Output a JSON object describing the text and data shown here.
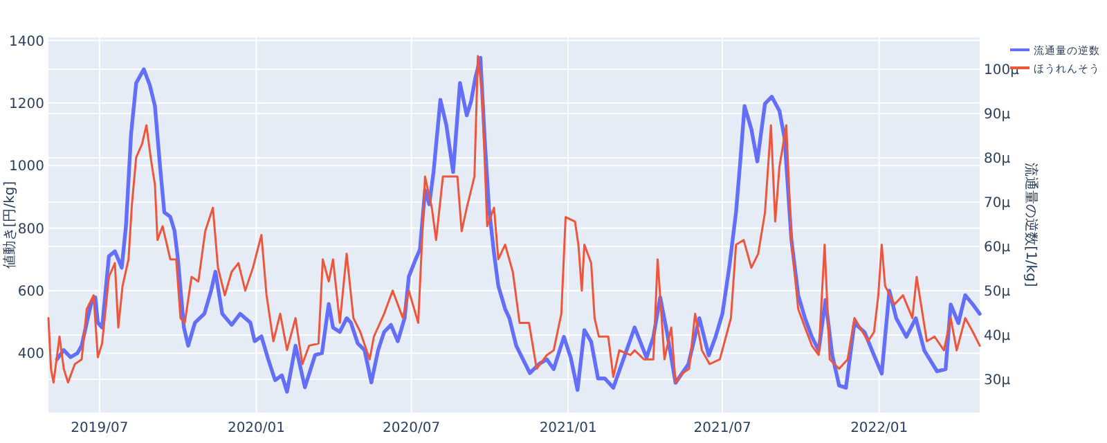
{
  "chart_data": {
    "type": "line",
    "ylabel": "値動き[円/kg]",
    "y2label": "流通量の逆数[1/kg]",
    "xlim": [
      "2019-05-02",
      "2022-04-29"
    ],
    "xticks": [
      {
        "value": "2019-07",
        "label": "2019/07"
      },
      {
        "value": "2020-01",
        "label": "2020/01"
      },
      {
        "value": "2020-07",
        "label": "2020/07"
      },
      {
        "value": "2021-01",
        "label": "2021/01"
      },
      {
        "value": "2021-07",
        "label": "2021/07"
      },
      {
        "value": "2022-01",
        "label": "2022/01"
      }
    ],
    "ylim": [
      210,
      1410
    ],
    "yticks": [
      400,
      600,
      800,
      1000,
      1200,
      1400
    ],
    "y2lim": [
      22.5,
      107.2
    ],
    "y2ticks": [
      {
        "value": 30,
        "label": "30µ"
      },
      {
        "value": 40,
        "label": "40µ"
      },
      {
        "value": 50,
        "label": "50µ"
      },
      {
        "value": 60,
        "label": "60µ"
      },
      {
        "value": 70,
        "label": "70µ"
      },
      {
        "value": 80,
        "label": "80µ"
      },
      {
        "value": 90,
        "label": "90µ"
      },
      {
        "value": 100,
        "label": "100µ"
      }
    ],
    "grid": true,
    "legend": "top right",
    "line_style": "solid",
    "marker": "none",
    "series": [
      {
        "name": "流通量の逆数",
        "color": "#636efa",
        "axis": "y2",
        "x": [
          "2019-05-12",
          "2019-05-20",
          "2019-05-28",
          "2019-06-05",
          "2019-06-10",
          "2019-06-16",
          "2019-06-21",
          "2019-06-26",
          "2019-06-29",
          "2019-07-04",
          "2019-07-12",
          "2019-07-19",
          "2019-07-27",
          "2019-08-01",
          "2019-08-07",
          "2019-08-13",
          "2019-08-22",
          "2019-08-29",
          "2019-09-04",
          "2019-09-10",
          "2019-09-15",
          "2019-09-22",
          "2019-09-27",
          "2019-10-01",
          "2019-10-08",
          "2019-10-13",
          "2019-10-21",
          "2019-11-01",
          "2019-11-09",
          "2019-11-14",
          "2019-11-22",
          "2019-12-03",
          "2019-12-13",
          "2019-12-25",
          "2019-12-30",
          "2020-01-07",
          "2020-01-15",
          "2020-01-23",
          "2020-01-31",
          "2020-02-06",
          "2020-02-16",
          "2020-02-27",
          "2020-03-10",
          "2020-03-18",
          "2020-03-26",
          "2020-03-31",
          "2020-04-08",
          "2020-04-16",
          "2020-04-21",
          "2020-04-29",
          "2020-05-07",
          "2020-05-15",
          "2020-05-23",
          "2020-05-30",
          "2020-06-07",
          "2020-06-15",
          "2020-06-23",
          "2020-06-28",
          "2020-07-06",
          "2020-07-11",
          "2020-07-17",
          "2020-07-22",
          "2020-07-27",
          "2020-08-04",
          "2020-08-11",
          "2020-08-19",
          "2020-08-27",
          "2020-09-04",
          "2020-09-09",
          "2020-09-14",
          "2020-09-20",
          "2020-09-25",
          "2020-09-30",
          "2020-10-06",
          "2020-10-11",
          "2020-10-19",
          "2020-10-24",
          "2020-11-01",
          "2020-11-09",
          "2020-11-17",
          "2020-11-28",
          "2020-12-07",
          "2020-12-15",
          "2020-12-27",
          "2021-01-04",
          "2021-01-12",
          "2021-01-20",
          "2021-01-28",
          "2021-02-05",
          "2021-02-13",
          "2021-02-23",
          "2021-03-20",
          "2021-04-03",
          "2021-04-11",
          "2021-04-19",
          "2021-04-27",
          "2021-05-07",
          "2021-05-22",
          "2021-06-04",
          "2021-06-15",
          "2021-06-23",
          "2021-07-01",
          "2021-07-09",
          "2021-07-17",
          "2021-07-22",
          "2021-07-27",
          "2021-08-04",
          "2021-08-11",
          "2021-08-20",
          "2021-08-28",
          "2021-09-06",
          "2021-09-12",
          "2021-09-20",
          "2021-09-28",
          "2021-10-06",
          "2021-10-14",
          "2021-10-22",
          "2021-10-30",
          "2021-11-07",
          "2021-11-15",
          "2021-11-23",
          "2021-12-03",
          "2021-12-15",
          "2021-12-26",
          "2022-01-04",
          "2022-01-13",
          "2022-01-21",
          "2022-02-02",
          "2022-02-13",
          "2022-02-23",
          "2022-03-10",
          "2022-03-20",
          "2022-03-26",
          "2022-04-04",
          "2022-04-12",
          "2022-04-21",
          "2022-04-29"
        ],
        "values": [
          34.5,
          36.6,
          35.0,
          35.9,
          37.6,
          42.8,
          47.0,
          48.5,
          42.8,
          41.7,
          57.8,
          58.9,
          55.2,
          64.6,
          85.4,
          96.9,
          100.0,
          96.4,
          91.7,
          78.1,
          67.7,
          66.7,
          63.5,
          57.1,
          41.7,
          37.6,
          42.8,
          44.8,
          50.1,
          54.3,
          44.8,
          42.3,
          44.8,
          42.8,
          38.6,
          39.7,
          34.5,
          29.8,
          30.9,
          27.2,
          37.6,
          28.2,
          35.5,
          35.9,
          47.0,
          41.7,
          40.7,
          43.8,
          42.8,
          38.1,
          36.6,
          29.3,
          36.6,
          40.7,
          42.3,
          38.6,
          43.8,
          53.2,
          57.1,
          59.3,
          72.7,
          69.5,
          76.8,
          93.1,
          87.4,
          76.8,
          96.9,
          89.6,
          92.7,
          98.0,
          102.6,
          84.3,
          68.8,
          58.4,
          51.1,
          45.9,
          43.8,
          37.6,
          34.5,
          31.4,
          33.5,
          34.5,
          32.3,
          39.6,
          34.9,
          27.6,
          41.1,
          38.5,
          30.2,
          30.2,
          28.1,
          41.7,
          34.9,
          39.6,
          48.5,
          40.6,
          29.2,
          33.4,
          43.8,
          35.4,
          39.6,
          44.8,
          55.2,
          67.7,
          79.2,
          91.7,
          86.5,
          79.2,
          92.2,
          93.8,
          90.6,
          84.4,
          61.5,
          49.0,
          43.8,
          39.6,
          36.5,
          47.9,
          35.4,
          28.6,
          28.1,
          42.7,
          40.6,
          35.4,
          31.3,
          50.0,
          43.8,
          39.6,
          43.8,
          36.5,
          31.8,
          32.3,
          46.9,
          42.7,
          49.0,
          46.9,
          44.8
        ]
      },
      {
        "name": "ほうれんそう",
        "color": "#ef553b",
        "axis": "y",
        "x": [
          "2019-05-02",
          "2019-05-05",
          "2019-05-08",
          "2019-05-15",
          "2019-05-20",
          "2019-05-25",
          "2019-06-02",
          "2019-06-10",
          "2019-06-16",
          "2019-06-24",
          "2019-06-29",
          "2019-07-04",
          "2019-07-12",
          "2019-07-19",
          "2019-07-23",
          "2019-07-28",
          "2019-08-04",
          "2019-08-08",
          "2019-08-13",
          "2019-08-20",
          "2019-08-25",
          "2019-08-30",
          "2019-09-04",
          "2019-09-07",
          "2019-09-13",
          "2019-09-22",
          "2019-09-29",
          "2019-10-04",
          "2019-10-09",
          "2019-10-17",
          "2019-10-25",
          "2019-11-02",
          "2019-11-11",
          "2019-11-17",
          "2019-11-25",
          "2019-12-03",
          "2019-12-11",
          "2019-12-19",
          "2019-12-28",
          "2020-01-07",
          "2020-01-13",
          "2020-01-21",
          "2020-01-29",
          "2020-02-06",
          "2020-02-16",
          "2020-02-24",
          "2020-03-03",
          "2020-03-14",
          "2020-03-19",
          "2020-03-26",
          "2020-03-31",
          "2020-04-08",
          "2020-04-16",
          "2020-04-24",
          "2020-05-02",
          "2020-05-13",
          "2020-05-18",
          "2020-05-30",
          "2020-06-09",
          "2020-06-21",
          "2020-06-28",
          "2020-07-09",
          "2020-07-17",
          "2020-07-25",
          "2020-07-30",
          "2020-08-07",
          "2020-08-24",
          "2020-08-29",
          "2020-09-04",
          "2020-09-13",
          "2020-09-17",
          "2020-09-22",
          "2020-09-28",
          "2020-10-06",
          "2020-10-11",
          "2020-10-19",
          "2020-10-28",
          "2020-11-05",
          "2020-11-16",
          "2020-11-25",
          "2020-12-07",
          "2020-12-15",
          "2020-12-24",
          "2020-12-29",
          "2021-01-09",
          "2021-01-13",
          "2021-01-17",
          "2021-01-20",
          "2021-01-28",
          "2021-02-01",
          "2021-02-06",
          "2021-02-17",
          "2021-02-23",
          "2021-03-02",
          "2021-03-15",
          "2021-03-20",
          "2021-03-31",
          "2021-04-11",
          "2021-04-16",
          "2021-04-24",
          "2021-05-02",
          "2021-05-07",
          "2021-05-15",
          "2021-05-23",
          "2021-05-30",
          "2021-06-07",
          "2021-06-16",
          "2021-06-28",
          "2021-07-11",
          "2021-07-17",
          "2021-07-26",
          "2021-08-04",
          "2021-08-12",
          "2021-08-20",
          "2021-08-27",
          "2021-09-01",
          "2021-09-06",
          "2021-09-14",
          "2021-09-20",
          "2021-09-28",
          "2021-10-06",
          "2021-10-14",
          "2021-10-22",
          "2021-10-29",
          "2021-11-04",
          "2021-11-15",
          "2021-11-25",
          "2021-12-03",
          "2021-12-19",
          "2021-12-26",
          "2021-12-31",
          "2022-01-04",
          "2022-01-08",
          "2022-01-19",
          "2022-01-29",
          "2022-02-09",
          "2022-02-14",
          "2022-02-26",
          "2022-03-07",
          "2022-03-18",
          "2022-03-26",
          "2022-04-02",
          "2022-04-12",
          "2022-04-21",
          "2022-04-29"
        ],
        "values": [
          512,
          350,
          306,
          453,
          350,
          306,
          365,
          380,
          541,
          585,
          387,
          431,
          644,
          688,
          482,
          615,
          700,
          876,
          1026,
          1070,
          1129,
          1026,
          938,
          762,
          806,
          700,
          700,
          512,
          497,
          644,
          629,
          790,
          865,
          673,
          585,
          660,
          688,
          600,
          673,
          778,
          585,
          438,
          526,
          410,
          512,
          365,
          424,
          431,
          700,
          629,
          700,
          497,
          718,
          512,
          468,
          380,
          453,
          526,
          600,
          512,
          600,
          497,
          965,
          865,
          762,
          965,
          965,
          790,
          865,
          965,
          1350,
          1232,
          806,
          865,
          700,
          747,
          660,
          497,
          497,
          350,
          394,
          409,
          526,
          835,
          821,
          747,
          600,
          747,
          688,
          512,
          453,
          453,
          324,
          409,
          394,
          409,
          380,
          380,
          700,
          380,
          482,
          306,
          335,
          350,
          526,
          409,
          365,
          380,
          512,
          747,
          762,
          673,
          718,
          850,
          1129,
          821,
          997,
          1129,
          762,
          541,
          482,
          424,
          394,
          747,
          380,
          350,
          380,
          512,
          438,
          468,
          585,
          747,
          615,
          556,
          585,
          512,
          644,
          438,
          453,
          409,
          512,
          409,
          512,
          468,
          424
        ]
      }
    ]
  }
}
